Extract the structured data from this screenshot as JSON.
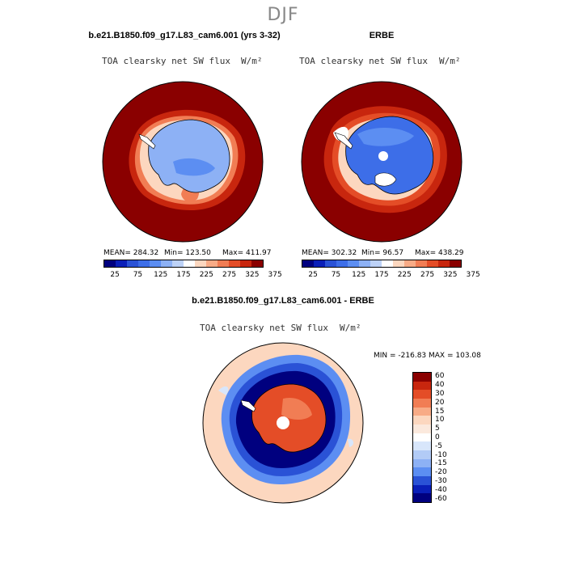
{
  "season": "DJF",
  "colors": {
    "abs_scale": [
      "#00007f",
      "#0a1fb8",
      "#2a52d6",
      "#3d6ee8",
      "#5c8ef2",
      "#8db1f5",
      "#bdd2f7",
      "#ffffff",
      "#fcd7bf",
      "#f8ab86",
      "#f17d54",
      "#e44d27",
      "#c8260e",
      "#8a0000"
    ],
    "diff_scale": [
      "#8a0000",
      "#c8260e",
      "#e44d27",
      "#f17d54",
      "#f8ab86",
      "#fcd7bf",
      "#fbe9dd",
      "#ffffff",
      "#d8e6fb",
      "#b2cbf6",
      "#8db1f5",
      "#5c8ef2",
      "#2a52d6",
      "#0a1fb8",
      "#00007f"
    ],
    "model_ocean": "#8a0000",
    "land": "#ffffff"
  },
  "panel_model": {
    "title": "b.e21.B1850.f09_g17.L83_cam6.001 (yrs 3-32)",
    "variable": "TOA clearsky net SW flux",
    "units": "W/m²",
    "mean_label": "MEAN= 284.32",
    "min_label": "Min= 123.50",
    "max_label": "Max= 411.97"
  },
  "panel_obs": {
    "title": "ERBE",
    "variable": "TOA clearsky net SW flux",
    "units": "W/m²",
    "mean_label": "MEAN= 302.32",
    "min_label": "Min= 96.57",
    "max_label": "Max= 438.29"
  },
  "abs_colorbar_ticks": [
    "25",
    "75",
    "125",
    "175",
    "225",
    "275",
    "325",
    "375"
  ],
  "panel_diff": {
    "title": "b.e21.B1850.f09_g17.L83_cam6.001 - ERBE",
    "variable": "TOA clearsky net SW flux",
    "units": "W/m²",
    "minmax_label": "MIN = -216.83 MAX = 103.08"
  },
  "diff_colorbar_ticks": [
    "60",
    "40",
    "30",
    "20",
    "15",
    "10",
    "5",
    "0",
    "-5",
    "-10",
    "-15",
    "-20",
    "-30",
    "-40",
    "-60"
  ]
}
